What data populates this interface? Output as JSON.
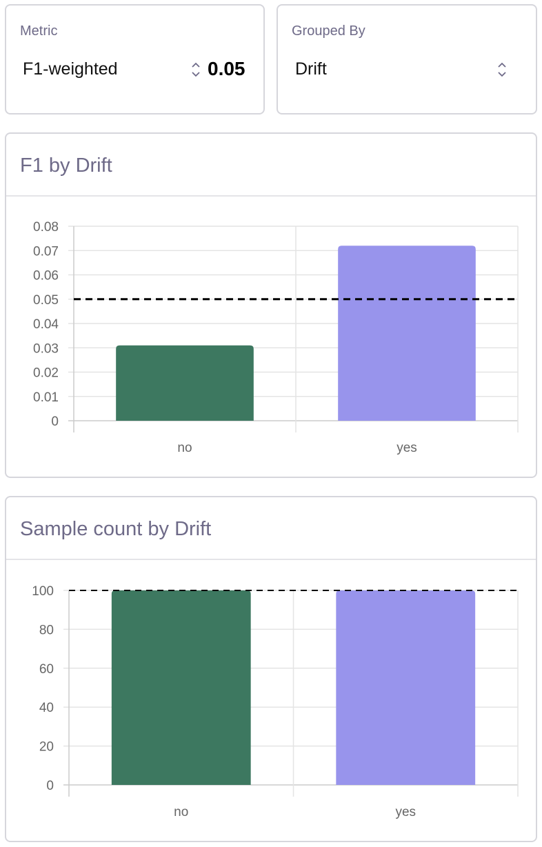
{
  "controls": {
    "metric_label": "Metric",
    "metric_value": "F1-weighted",
    "threshold_value": "0.05",
    "grouped_label": "Grouped By",
    "grouped_value": "Drift"
  },
  "colors": {
    "no": "#3d7860",
    "yes": "#9894ec"
  },
  "chart_data": [
    {
      "type": "bar",
      "title": "F1 by Drift",
      "categories": [
        "no",
        "yes"
      ],
      "values": [
        0.031,
        0.072
      ],
      "ylim": [
        0,
        0.08
      ],
      "yticks": [
        "0",
        "0.01",
        "0.02",
        "0.03",
        "0.04",
        "0.05",
        "0.06",
        "0.07",
        "0.08"
      ],
      "ytick_values": [
        0,
        0.01,
        0.02,
        0.03,
        0.04,
        0.05,
        0.06,
        0.07,
        0.08
      ],
      "threshold": 0.05,
      "grid": true
    },
    {
      "type": "bar",
      "title": "Sample count by Drift",
      "categories": [
        "no",
        "yes"
      ],
      "values": [
        100,
        100
      ],
      "ylim": [
        0,
        100
      ],
      "yticks": [
        "0",
        "20",
        "40",
        "60",
        "80",
        "100"
      ],
      "ytick_values": [
        0,
        20,
        40,
        60,
        80,
        100
      ],
      "threshold": 100,
      "grid": true
    }
  ]
}
